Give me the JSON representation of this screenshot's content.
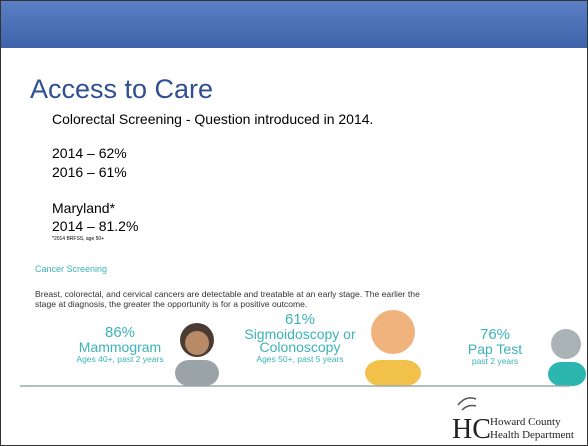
{
  "slide": {
    "title": "Access to Care",
    "subtitle": "Colorectal Screening -  Question introduced in 2014.",
    "lines": [
      "2014 – 62%",
      "2016 – 61%"
    ],
    "state": "Maryland*",
    "state_line": "2014 – 81.2%",
    "footnote": "*2014 BRFSS, age 50+"
  },
  "infographic": {
    "heading": "Cancer Screening",
    "paragraph": [
      "Breast, colorectal, and cervical cancers are detectable and treatable at an early stage.  The earlier the",
      "stage at diagnosis, the greater the opportunity is for a positive outcome."
    ],
    "stats": [
      {
        "percent": "86%",
        "label": [
          "Mammogram"
        ],
        "note": "Ages 40+, past 2 years"
      },
      {
        "percent": "61%",
        "label": [
          "Sigmoidoscopy or",
          "Colonoscopy"
        ],
        "note": "Ages 50+, past 5 years"
      },
      {
        "percent": "76%",
        "label": [
          "Pap Test"
        ],
        "note": "past 2 years"
      }
    ]
  },
  "logo": {
    "initials": "HC",
    "lines": [
      "Howard County",
      "Health Department"
    ]
  }
}
